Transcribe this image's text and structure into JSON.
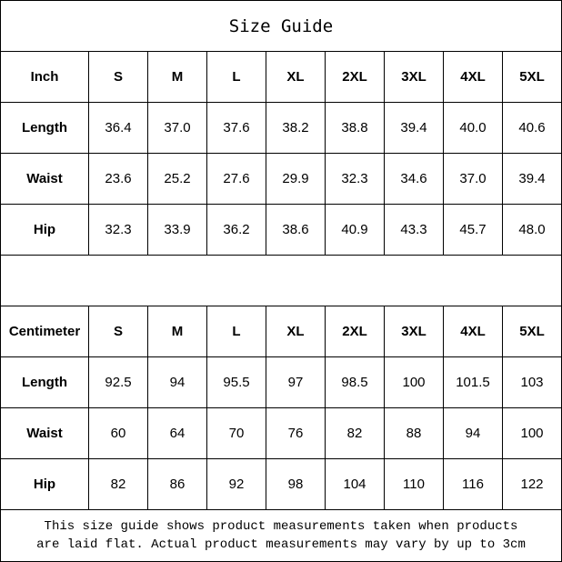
{
  "title": "Size Guide",
  "sizes": [
    "S",
    "M",
    "L",
    "XL",
    "2XL",
    "3XL",
    "4XL",
    "5XL"
  ],
  "tables": [
    {
      "unit": "Inch",
      "rows": [
        {
          "label": "Length",
          "values": [
            "36.4",
            "37.0",
            "37.6",
            "38.2",
            "38.8",
            "39.4",
            "40.0",
            "40.6"
          ]
        },
        {
          "label": "Waist",
          "values": [
            "23.6",
            "25.2",
            "27.6",
            "29.9",
            "32.3",
            "34.6",
            "37.0",
            "39.4"
          ]
        },
        {
          "label": "Hip",
          "values": [
            "32.3",
            "33.9",
            "36.2",
            "38.6",
            "40.9",
            "43.3",
            "45.7",
            "48.0"
          ]
        }
      ]
    },
    {
      "unit": "Centimeter",
      "rows": [
        {
          "label": "Length",
          "values": [
            "92.5",
            "94",
            "95.5",
            "97",
            "98.5",
            "100",
            "101.5",
            "103"
          ]
        },
        {
          "label": "Waist",
          "values": [
            "60",
            "64",
            "70",
            "76",
            "82",
            "88",
            "94",
            "100"
          ]
        },
        {
          "label": "Hip",
          "values": [
            "82",
            "86",
            "92",
            "98",
            "104",
            "110",
            "116",
            "122"
          ]
        }
      ]
    }
  ],
  "note": {
    "line1": "This size guide shows product measurements taken when products",
    "line2": "are laid flat. Actual product measurements may vary by up to 3cm"
  }
}
